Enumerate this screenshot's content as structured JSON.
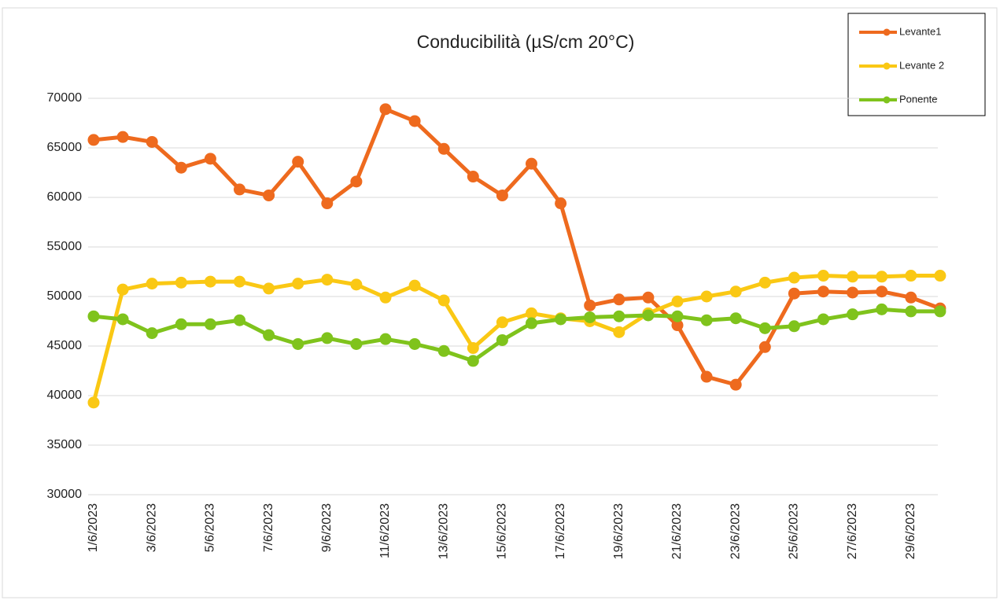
{
  "chart_data": {
    "type": "line",
    "title": "Conducibilità (µS/cm 20°C)",
    "categories": [
      "1/6/2023",
      null,
      "3/6/2023",
      null,
      "5/6/2023",
      null,
      "7/6/2023",
      null,
      "9/6/2023",
      null,
      "11/6/2023",
      null,
      "13/6/2023",
      null,
      "15/6/2023",
      null,
      "17/6/2023",
      null,
      "19/6/2023",
      null,
      "21/6/2023",
      null,
      "23/6/2023",
      null,
      "25/6/2023",
      null,
      "27/6/2023",
      null,
      "29/6/2023",
      null
    ],
    "series": [
      {
        "name": "Levante1",
        "color": "#ee6a1e",
        "values": [
          65800,
          66100,
          65600,
          63000,
          63900,
          60800,
          60200,
          63600,
          59400,
          61600,
          68900,
          67700,
          64900,
          62100,
          60200,
          63400,
          59400,
          49100,
          49700,
          49900,
          47100,
          41900,
          41100,
          44900,
          50300,
          50500,
          50400,
          50500,
          49900,
          48800
        ]
      },
      {
        "name": "Levante 2",
        "color": "#fac814",
        "values": [
          39300,
          50700,
          51300,
          51400,
          51500,
          51500,
          50800,
          51300,
          51700,
          51200,
          49900,
          51100,
          49600,
          44800,
          47400,
          48300,
          47800,
          47500,
          46400,
          48300,
          49500,
          50000,
          50500,
          51400,
          51900,
          52100,
          52000,
          52000,
          52100,
          52100
        ]
      },
      {
        "name": "Ponente",
        "color": "#7fc31c",
        "values": [
          48000,
          47700,
          46300,
          47200,
          47200,
          47600,
          46100,
          45200,
          45800,
          45200,
          45700,
          45200,
          44500,
          43500,
          45600,
          47300,
          47700,
          47900,
          48000,
          48100,
          48000,
          47600,
          47800,
          46800,
          47000,
          47700,
          48200,
          48700,
          48500,
          48500
        ]
      }
    ],
    "ylim": [
      30000,
      70000
    ],
    "yticks": [
      30000,
      35000,
      40000,
      45000,
      50000,
      55000,
      60000,
      65000,
      70000
    ],
    "grid": true,
    "legend": "top-right"
  }
}
